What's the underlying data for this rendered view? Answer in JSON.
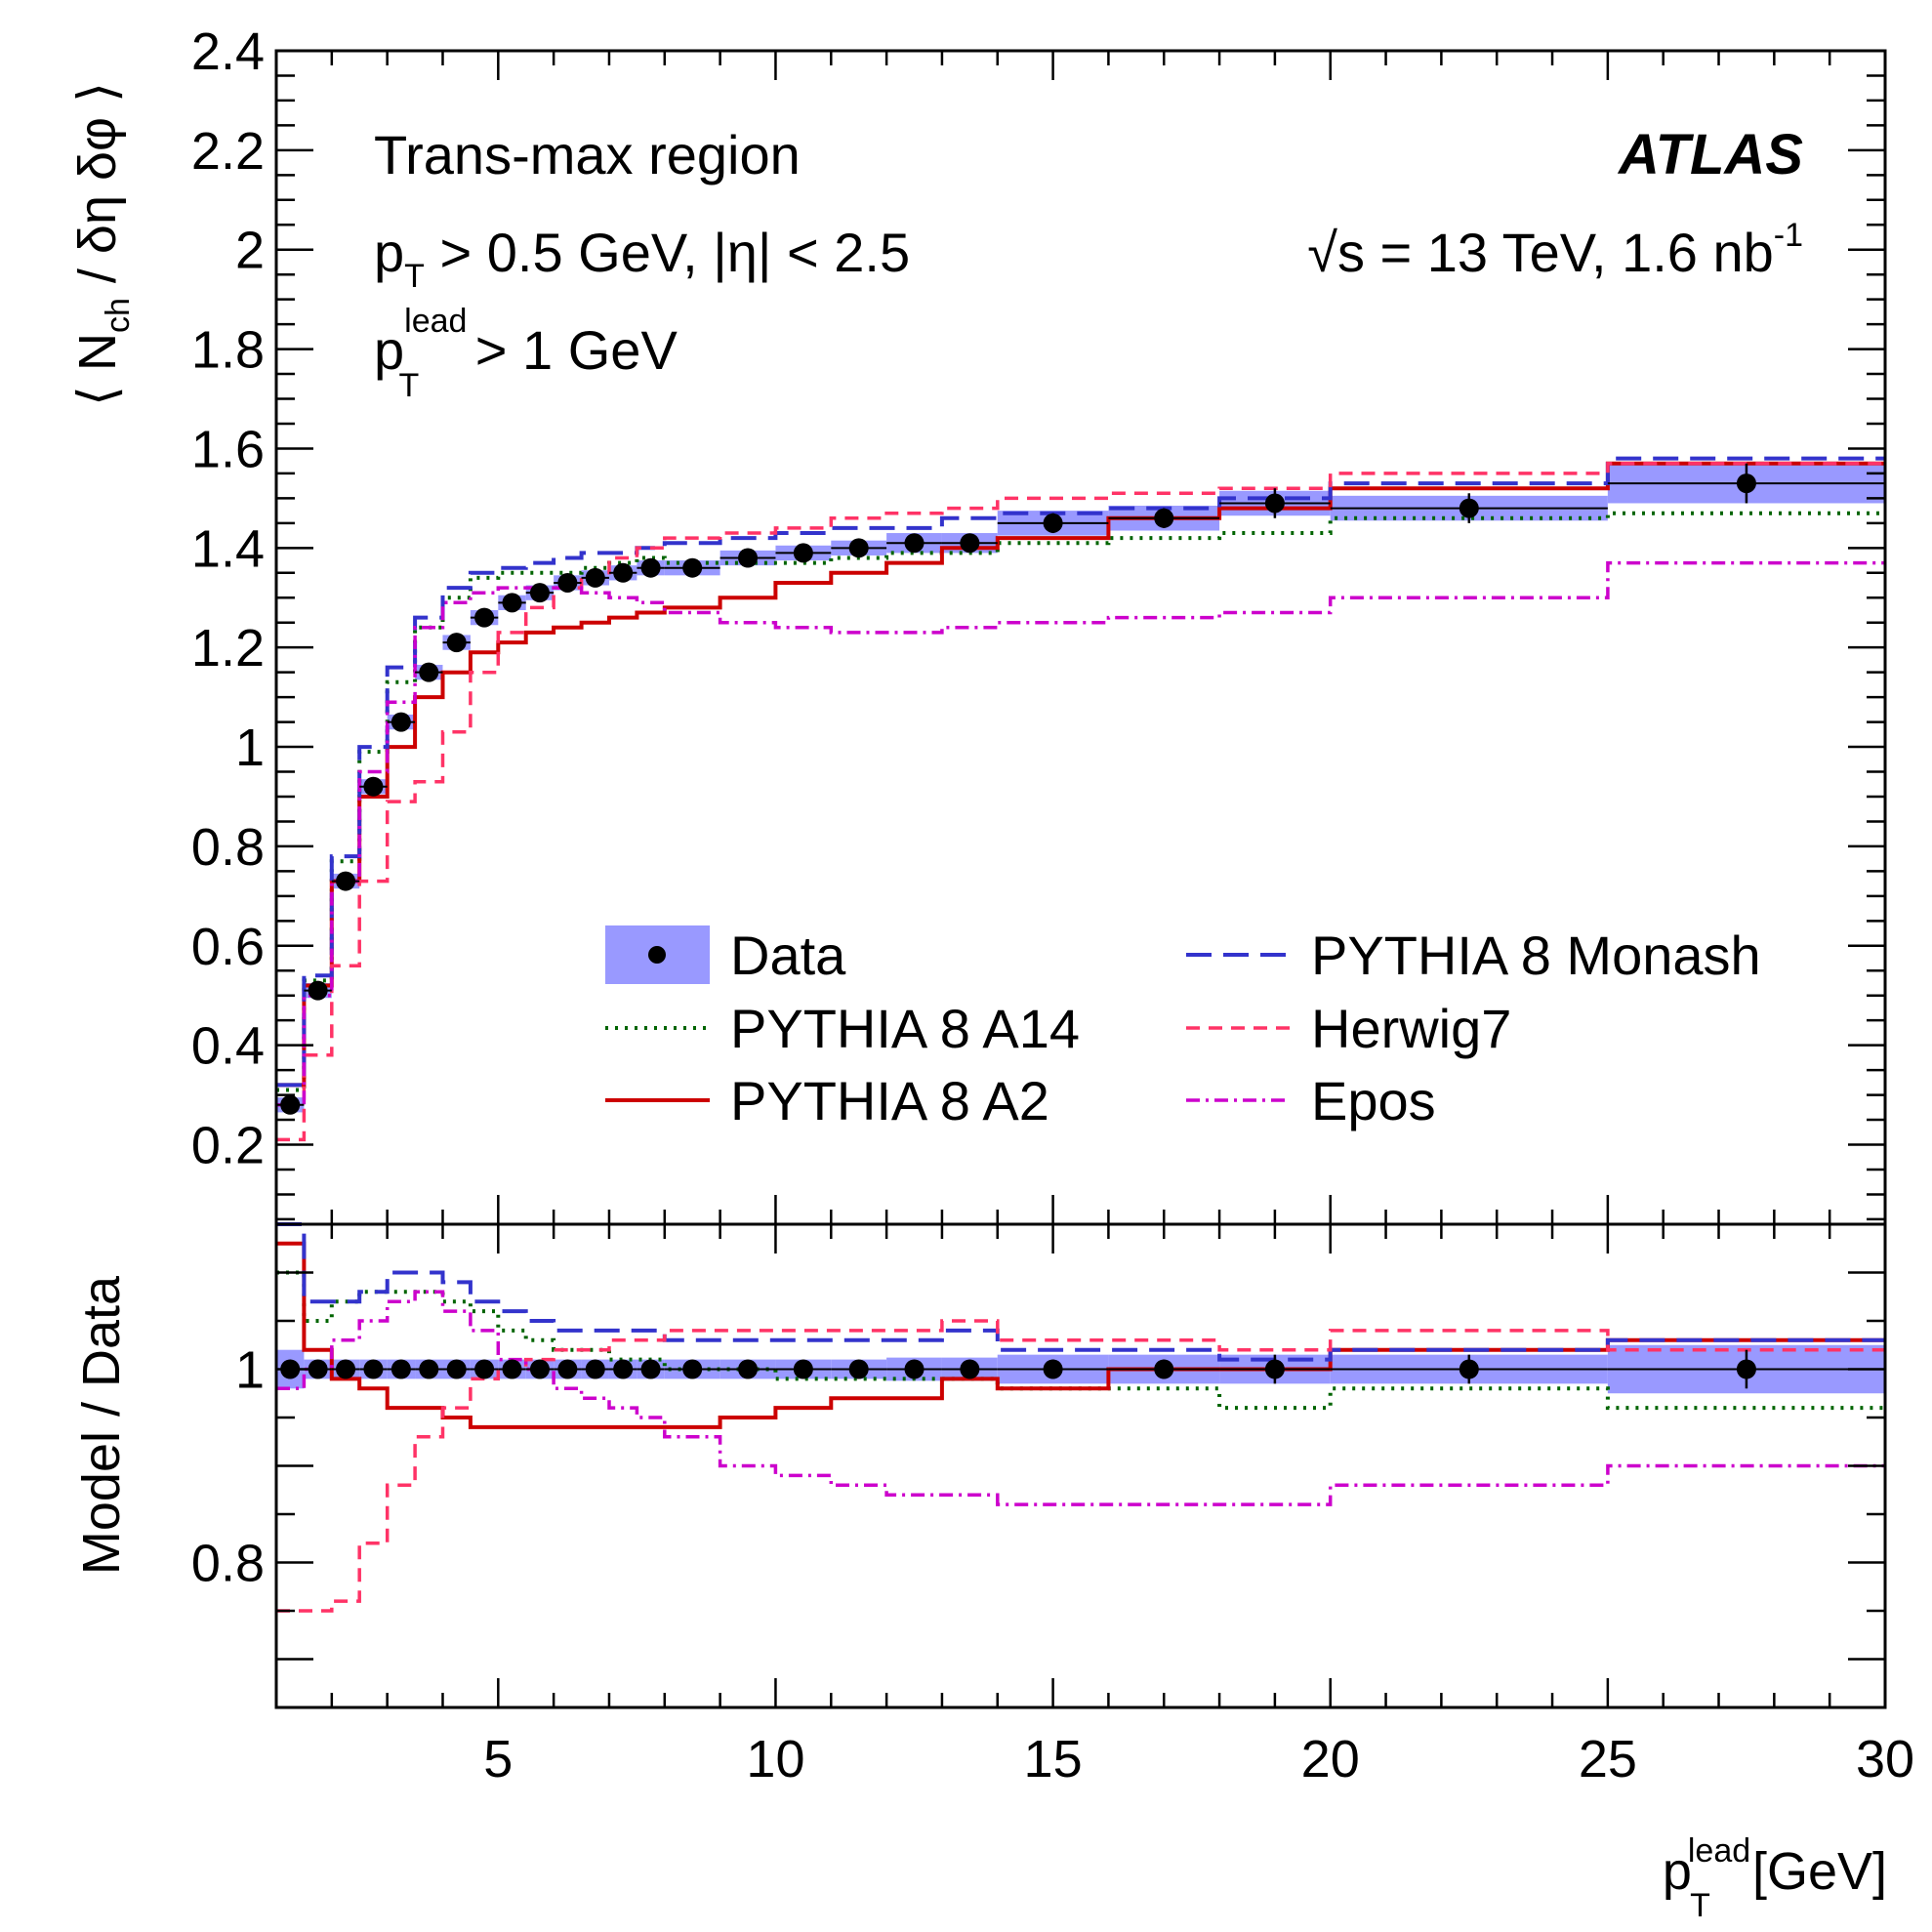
{
  "chart_data": [
    {
      "type": "line",
      "panel": "main",
      "ylabel": {
        "pre": "⟨ N",
        "sub": "ch",
        "post": " / δη δφ ⟩"
      },
      "xlim": [
        1,
        30
      ],
      "ylim": [
        0.04,
        2.4
      ],
      "yticks": [
        0.2,
        0.4,
        0.6,
        0.8,
        1,
        1.2,
        1.4,
        1.6,
        1.8,
        2,
        2.2,
        2.4
      ],
      "ytick_labels": [
        "0.2",
        "0.4",
        "0.6",
        "0.8",
        "1",
        "1.2",
        "1.4",
        "1.6",
        "1.8",
        "2",
        "2.2",
        "2.4"
      ],
      "annotations": {
        "region": "Trans-max region",
        "cut1_p": "p",
        "cut1_sub": "T",
        "cut1_rest": " > 0.5 GeV, |η| < 2.5",
        "cut2_p": "p",
        "cut2_sub": "T",
        "cut2_sup": "lead",
        "cut2_rest": " > 1 GeV",
        "experiment": "ATLAS",
        "energy_root": "√s",
        "energy_rest": " = 13 TeV, 1.6 nb",
        "energy_sup": "-1"
      },
      "legend_placement": "center-right",
      "bin_edges": [
        1,
        1.5,
        2,
        2.5,
        3,
        3.5,
        4,
        4.5,
        5,
        5.5,
        6,
        6.5,
        7,
        7.5,
        8,
        9,
        10,
        11,
        12,
        13,
        14,
        16,
        18,
        20,
        25,
        30
      ],
      "data": {
        "name": "Data",
        "x": [
          1.25,
          1.75,
          2.25,
          2.75,
          3.25,
          3.75,
          4.25,
          4.75,
          5.25,
          5.75,
          6.25,
          6.75,
          7.25,
          7.75,
          8.5,
          9.5,
          10.5,
          11.5,
          12.5,
          13.5,
          15,
          17,
          19,
          22.5,
          27.5
        ],
        "y": [
          0.28,
          0.51,
          0.73,
          0.92,
          1.05,
          1.15,
          1.21,
          1.26,
          1.29,
          1.31,
          1.33,
          1.34,
          1.35,
          1.36,
          1.36,
          1.38,
          1.39,
          1.4,
          1.41,
          1.41,
          1.45,
          1.46,
          1.49,
          1.48,
          1.53
        ],
        "err": [
          0.01,
          0.01,
          0.01,
          0.01,
          0.01,
          0.01,
          0.01,
          0.01,
          0.01,
          0.01,
          0.01,
          0.01,
          0.01,
          0.01,
          0.01,
          0.01,
          0.01,
          0.01,
          0.01,
          0.01,
          0.02,
          0.02,
          0.03,
          0.03,
          0.04
        ],
        "band": [
          0.015,
          0.015,
          0.015,
          0.015,
          0.015,
          0.015,
          0.015,
          0.015,
          0.015,
          0.015,
          0.015,
          0.015,
          0.015,
          0.015,
          0.015,
          0.015,
          0.015,
          0.015,
          0.02,
          0.02,
          0.025,
          0.025,
          0.025,
          0.025,
          0.04
        ]
      },
      "series": [
        {
          "name": "PYTHIA 8 A14",
          "color": "#006400",
          "dash": "3 7",
          "width": 4,
          "y": [
            0.31,
            0.53,
            0.77,
            0.99,
            1.13,
            1.24,
            1.3,
            1.34,
            1.35,
            1.35,
            1.35,
            1.36,
            1.37,
            1.38,
            1.37,
            1.37,
            1.37,
            1.38,
            1.39,
            1.39,
            1.41,
            1.42,
            1.43,
            1.46,
            1.47
          ]
        },
        {
          "name": "PYTHIA 8 A2",
          "color": "#cc0000",
          "dash": "",
          "width": 4,
          "y": [
            0.32,
            0.52,
            0.73,
            0.9,
            1.0,
            1.1,
            1.15,
            1.19,
            1.21,
            1.23,
            1.24,
            1.25,
            1.26,
            1.27,
            1.28,
            1.3,
            1.33,
            1.35,
            1.37,
            1.4,
            1.42,
            1.46,
            1.48,
            1.52,
            1.57
          ]
        },
        {
          "name": "PYTHIA 8 Monash",
          "color": "#3333cc",
          "dash": "26 12",
          "width": 4,
          "y": [
            0.32,
            0.54,
            0.78,
            1.0,
            1.16,
            1.26,
            1.32,
            1.35,
            1.36,
            1.37,
            1.38,
            1.39,
            1.39,
            1.4,
            1.41,
            1.42,
            1.43,
            1.44,
            1.44,
            1.46,
            1.47,
            1.48,
            1.5,
            1.53,
            1.58
          ]
        },
        {
          "name": "Herwig7",
          "color": "#ff3366",
          "dash": "14 9",
          "width": 3.5,
          "y": [
            0.21,
            0.38,
            0.56,
            0.73,
            0.89,
            0.93,
            1.03,
            1.15,
            1.23,
            1.28,
            1.32,
            1.34,
            1.38,
            1.4,
            1.42,
            1.43,
            1.44,
            1.46,
            1.47,
            1.48,
            1.5,
            1.51,
            1.52,
            1.55,
            1.57
          ]
        },
        {
          "name": "Epos",
          "color": "#cc00cc",
          "dash": "14 6 3 6",
          "width": 3.5,
          "y": [
            0.28,
            0.5,
            0.73,
            0.95,
            1.09,
            1.24,
            1.29,
            1.31,
            1.32,
            1.32,
            1.32,
            1.31,
            1.3,
            1.29,
            1.27,
            1.25,
            1.24,
            1.23,
            1.23,
            1.24,
            1.25,
            1.26,
            1.27,
            1.3,
            1.37
          ]
        }
      ],
      "legend": [
        {
          "key": "data",
          "label": "Data"
        },
        {
          "key": "A14",
          "label": "PYTHIA 8 A14"
        },
        {
          "key": "A2",
          "label": "PYTHIA 8 A2"
        },
        {
          "key": "Monash",
          "label": "PYTHIA 8 Monash"
        },
        {
          "key": "Herwig7",
          "label": "Herwig7"
        },
        {
          "key": "Epos",
          "label": "Epos"
        }
      ]
    },
    {
      "type": "line",
      "panel": "ratio",
      "ylabel": "Model / Data",
      "xlim": [
        1,
        30
      ],
      "ylim": [
        0.65,
        1.15
      ],
      "yticks": [
        0.8,
        1
      ],
      "ytick_labels": [
        "0.8",
        "1"
      ],
      "xticks": [
        5,
        10,
        15,
        20,
        25,
        30
      ],
      "xtick_labels": [
        "5",
        "10",
        "15",
        "20",
        "25",
        "30"
      ],
      "xlabel": {
        "p": "p",
        "sub": "T",
        "sup": "lead",
        "rest": " [GeV]"
      },
      "bin_edges": [
        1,
        1.5,
        2,
        2.5,
        3,
        3.5,
        4,
        4.5,
        5,
        5.5,
        6,
        6.5,
        7,
        7.5,
        8,
        9,
        10,
        11,
        12,
        13,
        14,
        16,
        18,
        20,
        25,
        30
      ],
      "data": {
        "name": "Data",
        "x": [
          1.25,
          1.75,
          2.25,
          2.75,
          3.25,
          3.75,
          4.25,
          4.75,
          5.25,
          5.75,
          6.25,
          6.75,
          7.25,
          7.75,
          8.5,
          9.5,
          10.5,
          11.5,
          12.5,
          13.5,
          15,
          17,
          19,
          22.5,
          27.5
        ],
        "y": [
          1,
          1,
          1,
          1,
          1,
          1,
          1,
          1,
          1,
          1,
          1,
          1,
          1,
          1,
          1,
          1,
          1,
          1,
          1,
          1,
          1,
          1,
          1,
          1,
          1
        ],
        "err": [
          0.005,
          0.005,
          0.005,
          0.005,
          0.005,
          0.005,
          0.005,
          0.005,
          0.005,
          0.005,
          0.005,
          0.005,
          0.005,
          0.005,
          0.005,
          0.005,
          0.005,
          0.005,
          0.005,
          0.005,
          0.01,
          0.01,
          0.015,
          0.015,
          0.02
        ],
        "band": [
          0.02,
          0.01,
          0.01,
          0.01,
          0.01,
          0.01,
          0.01,
          0.01,
          0.01,
          0.01,
          0.01,
          0.01,
          0.01,
          0.01,
          0.01,
          0.01,
          0.01,
          0.01,
          0.012,
          0.012,
          0.015,
          0.015,
          0.015,
          0.015,
          0.025
        ]
      },
      "series": [
        {
          "name": "PYTHIA 8 A14",
          "color": "#006400",
          "dash": "3 7",
          "width": 4,
          "y": [
            1.1,
            1.05,
            1.07,
            1.08,
            1.08,
            1.08,
            1.07,
            1.06,
            1.04,
            1.03,
            1.02,
            1.02,
            1.01,
            1.01,
            1.0,
            1.0,
            0.99,
            0.99,
            0.99,
            0.99,
            0.98,
            0.98,
            0.96,
            0.98,
            0.96
          ]
        },
        {
          "name": "PYTHIA 8 A2",
          "color": "#cc0000",
          "dash": "",
          "width": 4,
          "y": [
            1.13,
            1.02,
            0.99,
            0.98,
            0.96,
            0.96,
            0.95,
            0.94,
            0.94,
            0.94,
            0.94,
            0.94,
            0.94,
            0.94,
            0.94,
            0.95,
            0.96,
            0.97,
            0.97,
            0.99,
            0.98,
            1.0,
            1.0,
            1.02,
            1.03
          ]
        },
        {
          "name": "PYTHIA 8 Monash",
          "color": "#3333cc",
          "dash": "26 12",
          "width": 4,
          "y": [
            1.16,
            1.07,
            1.07,
            1.08,
            1.1,
            1.1,
            1.09,
            1.07,
            1.06,
            1.05,
            1.04,
            1.04,
            1.04,
            1.04,
            1.03,
            1.03,
            1.03,
            1.03,
            1.03,
            1.04,
            1.02,
            1.02,
            1.01,
            1.02,
            1.03
          ]
        },
        {
          "name": "Herwig7",
          "color": "#ff3366",
          "dash": "14 9",
          "width": 3.5,
          "y": [
            0.75,
            0.75,
            0.76,
            0.82,
            0.88,
            0.93,
            0.96,
            0.99,
            1.0,
            1.01,
            1.02,
            1.02,
            1.03,
            1.03,
            1.04,
            1.04,
            1.04,
            1.04,
            1.04,
            1.05,
            1.03,
            1.03,
            1.02,
            1.04,
            1.02
          ]
        },
        {
          "name": "Epos",
          "color": "#cc00cc",
          "dash": "14 6 3 6",
          "width": 3.5,
          "y": [
            0.98,
            1.0,
            1.03,
            1.05,
            1.07,
            1.08,
            1.06,
            1.04,
            1.01,
            1.0,
            0.98,
            0.97,
            0.96,
            0.95,
            0.93,
            0.9,
            0.89,
            0.88,
            0.87,
            0.87,
            0.86,
            0.86,
            0.86,
            0.88,
            0.9
          ]
        }
      ]
    }
  ]
}
